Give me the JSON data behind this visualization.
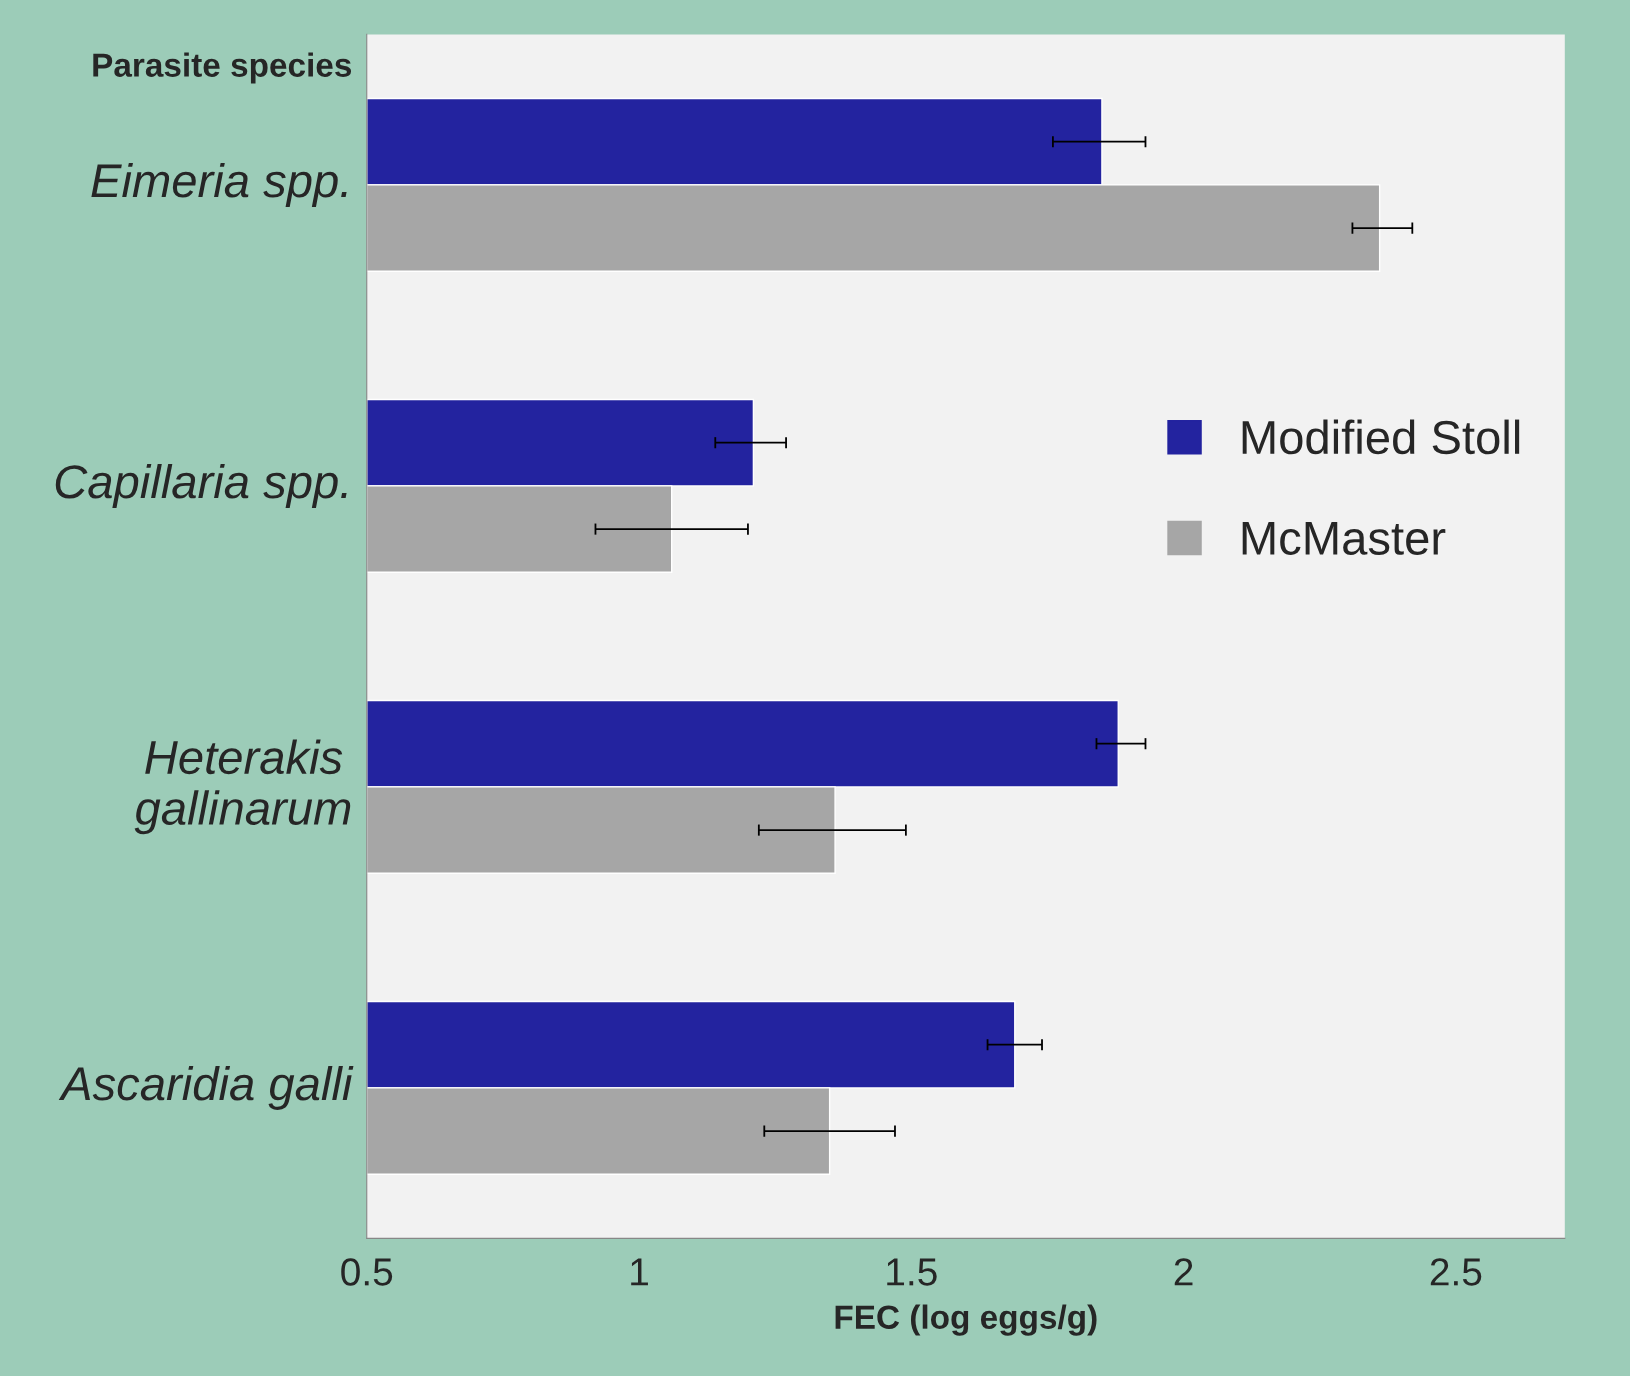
{
  "chart_data": {
    "type": "bar",
    "orientation": "horizontal",
    "xlabel": "FEC (log eggs/g)",
    "ylabel": "Parasite species",
    "categories": [
      "Eimeria spp.",
      "Capillaria spp.",
      "Heterakis gallinarum",
      "Ascaridia galli"
    ],
    "series": [
      {
        "name": "Modified Stoll",
        "color": "#23239f",
        "values": [
          1.85,
          1.21,
          1.88,
          1.69
        ],
        "errors": [
          [
            1.76,
            1.93
          ],
          [
            1.14,
            1.27
          ],
          [
            1.84,
            1.93
          ],
          [
            1.64,
            1.74
          ]
        ]
      },
      {
        "name": "McMaster",
        "color": "#a6a6a6",
        "values": [
          2.36,
          1.06,
          1.36,
          1.35
        ],
        "errors": [
          [
            2.31,
            2.42
          ],
          [
            0.92,
            1.2
          ],
          [
            1.22,
            1.49
          ],
          [
            1.23,
            1.47
          ]
        ]
      }
    ],
    "xlim": [
      0.5,
      2.7
    ],
    "xticks": [
      0.5,
      1,
      1.5,
      2,
      2.5
    ],
    "grid": false,
    "legend": "right"
  }
}
